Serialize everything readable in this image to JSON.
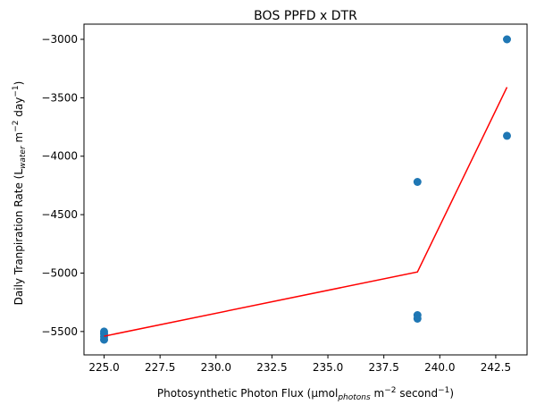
{
  "chart_data": {
    "type": "scatter",
    "title": "BOS PPFD x DTR",
    "xlabel": {
      "main": "Photosynthetic Photon Flux (µmol",
      "sub": "photons",
      "mid": " m",
      "sup1": "−2",
      "mid2": " second",
      "sup2": "−1",
      "end": ")"
    },
    "ylabel": {
      "main": "Daily Tranpiration Rate (L",
      "sub": "water",
      "mid": " m",
      "sup1": "−2",
      "mid2": " day",
      "sup2": "−1",
      "end": ")"
    },
    "xlim": [
      224.1,
      243.9
    ],
    "ylim": [
      -5700,
      -2870
    ],
    "xticks": [
      225.0,
      227.5,
      230.0,
      232.5,
      235.0,
      237.5,
      240.0,
      242.5
    ],
    "xtick_labels": [
      "225.0",
      "227.5",
      "230.0",
      "232.5",
      "235.0",
      "237.5",
      "240.0",
      "242.5"
    ],
    "yticks": [
      -5500,
      -5000,
      -4500,
      -4000,
      -3500,
      -3000
    ],
    "ytick_labels": [
      "−5500",
      "−5000",
      "−4500",
      "−4000",
      "−3500",
      "−3000"
    ],
    "grid": false,
    "series": [
      {
        "kind": "scatter",
        "color": "#1f77b4",
        "points": [
          [
            225,
            -5500
          ],
          [
            225,
            -5520
          ],
          [
            225,
            -5545
          ],
          [
            225,
            -5570
          ],
          [
            239,
            -4220
          ],
          [
            239,
            -5360
          ],
          [
            239,
            -5390
          ],
          [
            243,
            -3000
          ],
          [
            243,
            -3825
          ]
        ]
      },
      {
        "kind": "line",
        "color": "#ff0000",
        "points": [
          [
            225,
            -5540
          ],
          [
            239,
            -4990
          ],
          [
            243,
            -3410
          ]
        ]
      }
    ]
  }
}
